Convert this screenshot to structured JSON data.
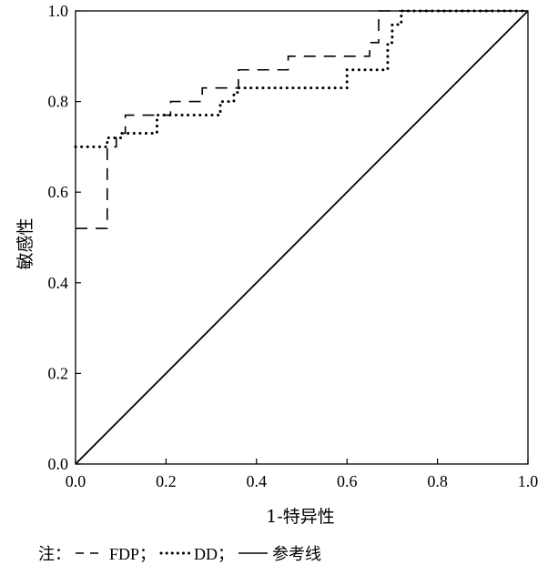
{
  "chart_data": {
    "type": "line",
    "xlabel": "1-特异性",
    "ylabel": "敏感性",
    "xlim": [
      0,
      1
    ],
    "ylim": [
      0,
      1
    ],
    "xticks": [
      "0.0",
      "0.2",
      "0.4",
      "0.6",
      "0.8",
      "1.0"
    ],
    "yticks": [
      "0.0",
      "0.2",
      "0.4",
      "0.6",
      "0.8",
      "1.0"
    ],
    "grid": false,
    "series": [
      {
        "name": "FDP",
        "style": "dashed",
        "color": "#000000",
        "x": [
          0,
          0.07,
          0.07,
          0.07,
          0.07,
          0.09,
          0.09,
          0.11,
          0.11,
          0.21,
          0.21,
          0.28,
          0.28,
          0.36,
          0.36,
          0.4,
          0.4,
          0.47,
          0.47,
          0.65,
          0.65,
          0.67,
          0.67,
          1.0
        ],
        "y": [
          0.52,
          0.52,
          0.53,
          0.53,
          0.7,
          0.7,
          0.73,
          0.73,
          0.77,
          0.77,
          0.8,
          0.8,
          0.83,
          0.83,
          0.87,
          0.87,
          0.87,
          0.87,
          0.9,
          0.9,
          0.93,
          0.93,
          1.0,
          1.0
        ]
      },
      {
        "name": "DD",
        "style": "dotted",
        "color": "#000000",
        "x": [
          0,
          0.07,
          0.07,
          0.1,
          0.1,
          0.18,
          0.18,
          0.32,
          0.32,
          0.35,
          0.35,
          0.36,
          0.36,
          0.6,
          0.6,
          0.69,
          0.69,
          0.7,
          0.7,
          0.72,
          0.72,
          1.0
        ],
        "y": [
          0.7,
          0.7,
          0.72,
          0.72,
          0.73,
          0.73,
          0.77,
          0.77,
          0.8,
          0.8,
          0.82,
          0.82,
          0.83,
          0.83,
          0.87,
          0.87,
          0.93,
          0.93,
          0.97,
          0.97,
          1.0,
          1.0
        ]
      },
      {
        "name": "参考线",
        "style": "solid",
        "color": "#000000",
        "x": [
          0,
          1
        ],
        "y": [
          0,
          1
        ]
      }
    ]
  },
  "note": {
    "prefix": "注：",
    "items": [
      {
        "label": "FDP；",
        "style": "dashed"
      },
      {
        "label": "DD；",
        "style": "dotted"
      },
      {
        "label": "参考线",
        "style": "solid"
      }
    ]
  }
}
